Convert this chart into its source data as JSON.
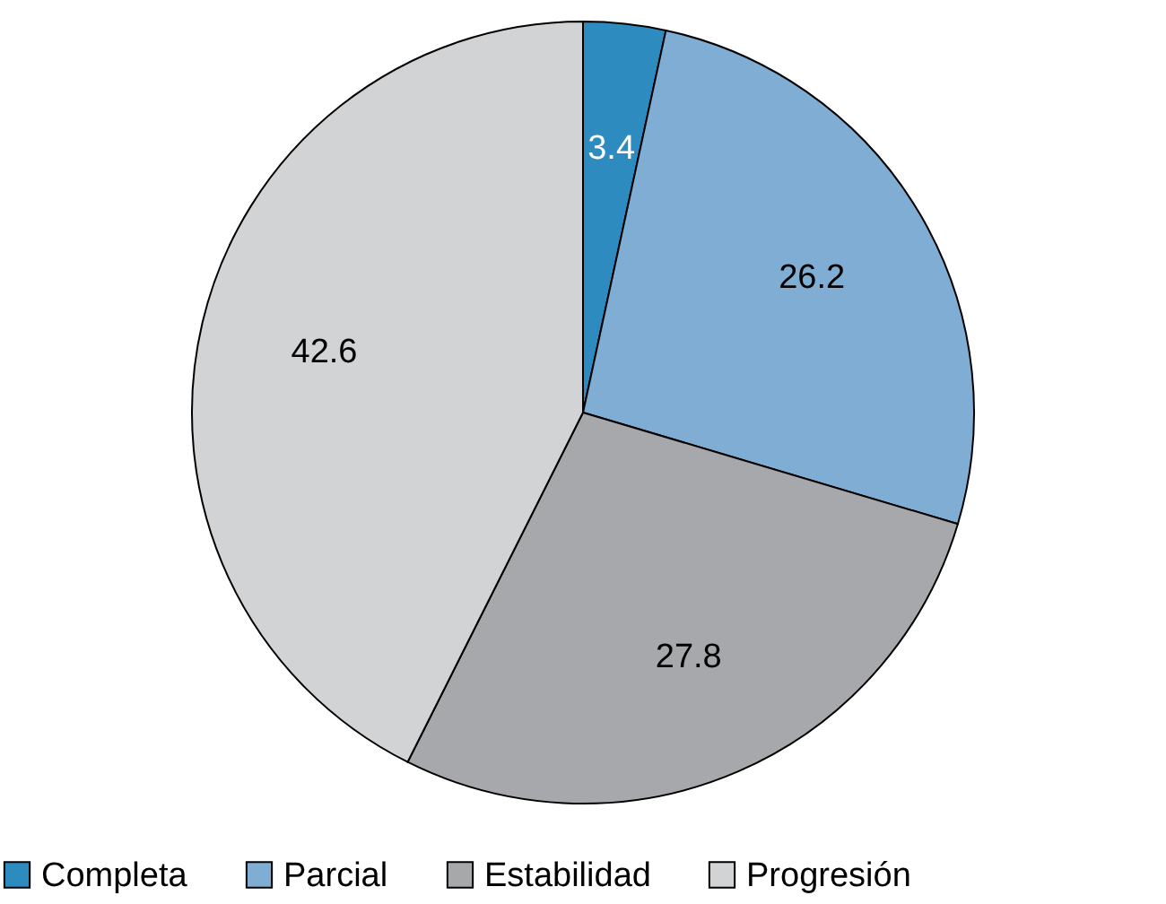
{
  "chart_data": {
    "type": "pie",
    "categories": [
      "Completa",
      "Parcial",
      "Estabilidad",
      "Progresión"
    ],
    "values": [
      3.4,
      26.2,
      27.8,
      42.6
    ],
    "colors": [
      "#2e8bbf",
      "#7fadd3",
      "#a7a8ab",
      "#d2d3d5"
    ],
    "data_labels": true,
    "legend": "bottom"
  }
}
